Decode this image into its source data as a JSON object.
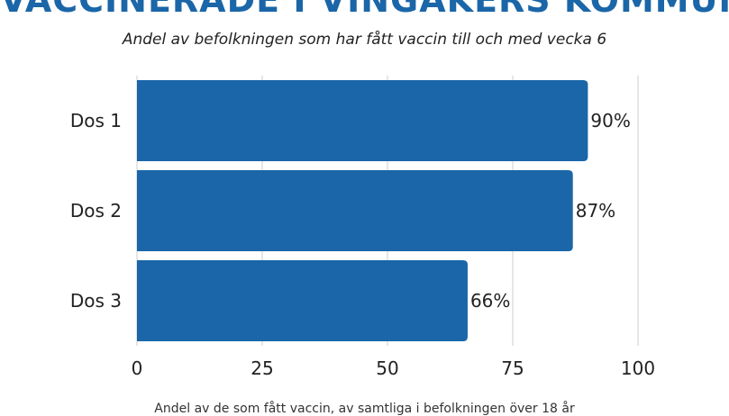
{
  "title": "VACCINERADE I VINGÅKERS KOMMUN",
  "subtitle": "Andel av befolkningen som har fått vaccin till och med vecka 6",
  "footnote": "Andel av de som fått vaccin, av samtliga i befolkningen över 18 år",
  "colors": {
    "bar": "#1a66a8",
    "title": "#1a66a8",
    "grid": "#cccccc"
  },
  "chart_data": {
    "type": "bar",
    "orientation": "horizontal",
    "categories": [
      "Dos 1",
      "Dos 2",
      "Dos 3"
    ],
    "values": [
      90,
      87,
      66
    ],
    "data_labels": [
      "90%",
      "87%",
      "66%"
    ],
    "xticks": [
      "0",
      "25",
      "50",
      "75",
      "100"
    ],
    "xlim": [
      0,
      100
    ],
    "grid": true,
    "legend": "none",
    "xlabel": "",
    "ylabel": ""
  }
}
